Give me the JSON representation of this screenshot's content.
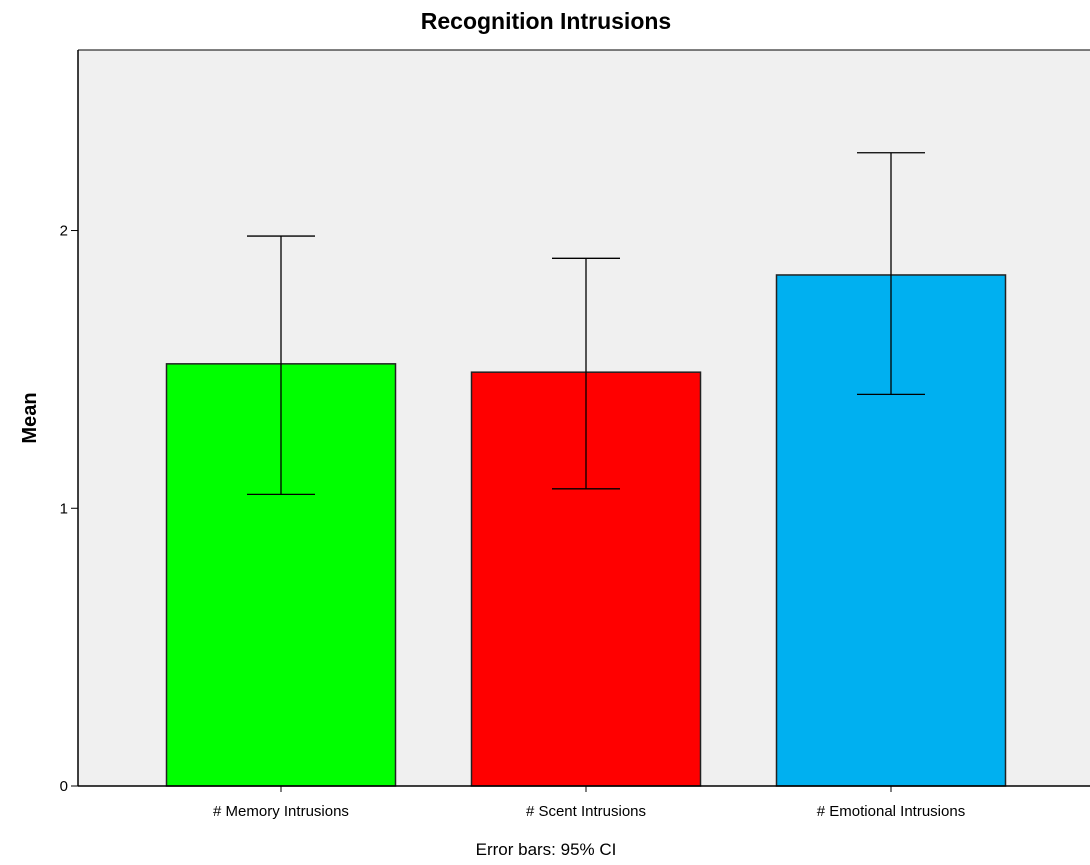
{
  "chart_data": {
    "type": "bar",
    "title": "Recognition Intrusions",
    "ylabel": "Mean",
    "xlabel": "",
    "categories": [
      "# Memory Intrusions",
      "# Scent Intrusions",
      "# Emotional Intrusions"
    ],
    "values": [
      1.52,
      1.49,
      1.84
    ],
    "error_bars": {
      "type": "95% CI",
      "lower": [
        1.05,
        1.07,
        1.41
      ],
      "upper": [
        1.98,
        1.9,
        2.28
      ]
    },
    "colors": [
      "#00ff00",
      "#ff0000",
      "#00b0f0"
    ],
    "ylim": [
      0,
      2.65
    ],
    "yticks": [
      0,
      1,
      2
    ],
    "grid": false,
    "plot_background": "#f0f0f0",
    "footnote": "Error bars: 95% CI"
  }
}
